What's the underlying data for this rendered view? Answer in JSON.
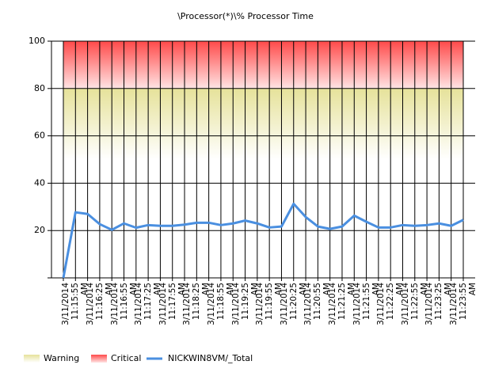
{
  "chart_data": {
    "type": "line",
    "title": "\\Processor(*)\\% Processor Time",
    "categories": [
      null,
      "3/11/2014 11:15:55 AM",
      null,
      "3/11/2014 11:16:25 AM",
      null,
      "3/11/2014 11:16:55 AM",
      null,
      "3/11/2014 11:17:25 AM",
      null,
      "3/11/2014 11:17:55 AM",
      null,
      "3/11/2014 11:18:25 AM",
      null,
      "3/11/2014 11:18:55 AM",
      null,
      "3/11/2014 11:19:25 AM",
      null,
      "3/11/2014 11:19:55 AM",
      null,
      "3/11/2014 11:20:25 AM",
      null,
      "3/11/2014 11:20:55 AM",
      null,
      "3/11/2014 11:21:25 AM",
      null,
      "3/11/2014 11:21:55 AM",
      null,
      "3/11/2014 11:22:25 AM",
      null,
      "3/11/2014 11:22:55 AM",
      null,
      "3/11/2014 11:23:25 AM",
      null,
      "3/11/2014 11:23:55 AM"
    ],
    "series": [
      {
        "name": "NICKWIN8VM/_Total",
        "color": "#4a8fe0",
        "values": [
          0,
          27.7,
          27,
          22.7,
          20.3,
          23,
          21.2,
          22.3,
          22,
          22,
          22.5,
          23.3,
          23.3,
          22.3,
          23,
          24.2,
          23,
          21.3,
          21.7,
          31.3,
          25.7,
          21.7,
          20.7,
          21.7,
          26.3,
          23.7,
          21.3,
          21.3,
          22.3,
          22,
          22.3,
          23,
          22,
          24.5
        ]
      }
    ],
    "bands": [
      {
        "name": "Warning",
        "color": "#e6e29a",
        "from": 50,
        "to": 80
      },
      {
        "name": "Critical",
        "color": "#ff4a4a",
        "from": 80,
        "to": 100
      }
    ],
    "ylim": [
      0,
      100
    ],
    "yticks": [
      20,
      40,
      60,
      80,
      100
    ],
    "grid": true,
    "legend": "bottom"
  }
}
